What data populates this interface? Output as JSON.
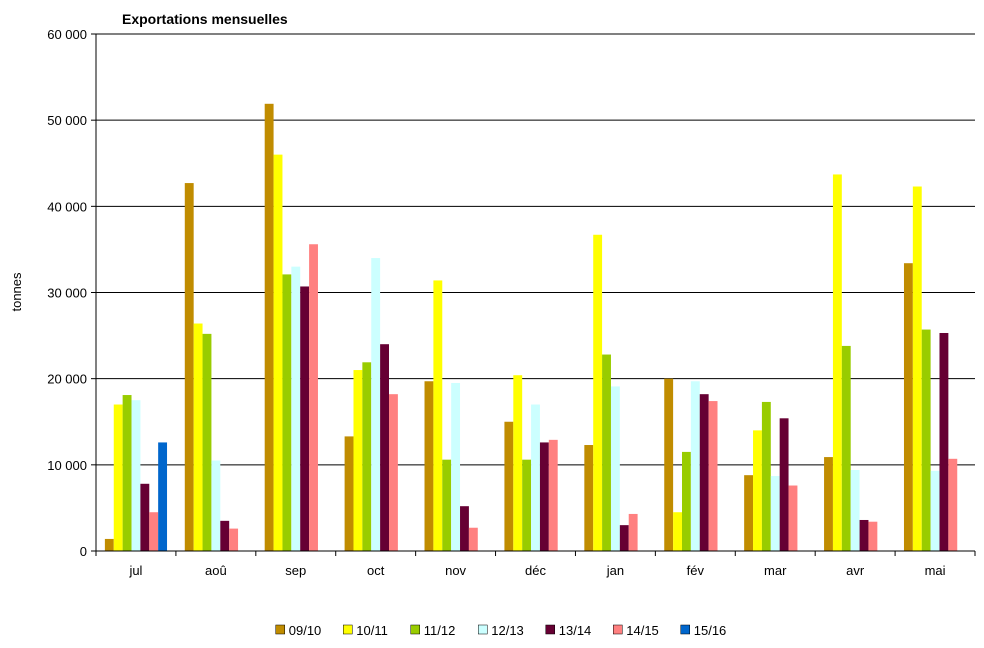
{
  "chart_data": {
    "type": "bar",
    "title": "Exportations mensuelles",
    "ylabel": "tonnes",
    "xlabel": "",
    "ylim": [
      0,
      60000
    ],
    "yticks": [
      0,
      10000,
      20000,
      30000,
      40000,
      50000,
      60000
    ],
    "ytick_labels": [
      "0",
      "10 000",
      "20 000",
      "30 000",
      "40 000",
      "50 000",
      "60 000"
    ],
    "grid": true,
    "legend_position": "bottom",
    "categories": [
      "jul",
      "aoû",
      "sep",
      "oct",
      "nov",
      "déc",
      "jan",
      "fév",
      "mar",
      "avr",
      "mai"
    ],
    "series": [
      {
        "name": "09/10",
        "color": "#C08C00",
        "values": [
          1400,
          42700,
          51900,
          13300,
          19700,
          15000,
          12300,
          20000,
          8800,
          10900,
          33400
        ]
      },
      {
        "name": "10/11",
        "color": "#FFFF00",
        "values": [
          17000,
          26400,
          46000,
          21000,
          31400,
          20400,
          36700,
          4500,
          14000,
          43700,
          42300
        ]
      },
      {
        "name": "11/12",
        "color": "#99CC00",
        "values": [
          18100,
          25200,
          32100,
          21900,
          10600,
          10600,
          22800,
          11500,
          17300,
          23800,
          25700
        ]
      },
      {
        "name": "12/13",
        "color": "#CCFFFF",
        "values": [
          17500,
          10500,
          33000,
          34000,
          19500,
          17000,
          19100,
          19700,
          8700,
          9400,
          9300
        ]
      },
      {
        "name": "13/14",
        "color": "#660033",
        "values": [
          7800,
          3500,
          30700,
          24000,
          5200,
          12600,
          3000,
          18200,
          15400,
          3600,
          25300
        ]
      },
      {
        "name": "14/15",
        "color": "#FF8080",
        "values": [
          4500,
          2600,
          35600,
          18200,
          2700,
          12900,
          4300,
          17400,
          7600,
          3400,
          10700
        ]
      },
      {
        "name": "15/16",
        "color": "#0066CC",
        "values": [
          12600,
          null,
          null,
          null,
          null,
          null,
          null,
          null,
          null,
          null,
          null
        ]
      }
    ]
  }
}
